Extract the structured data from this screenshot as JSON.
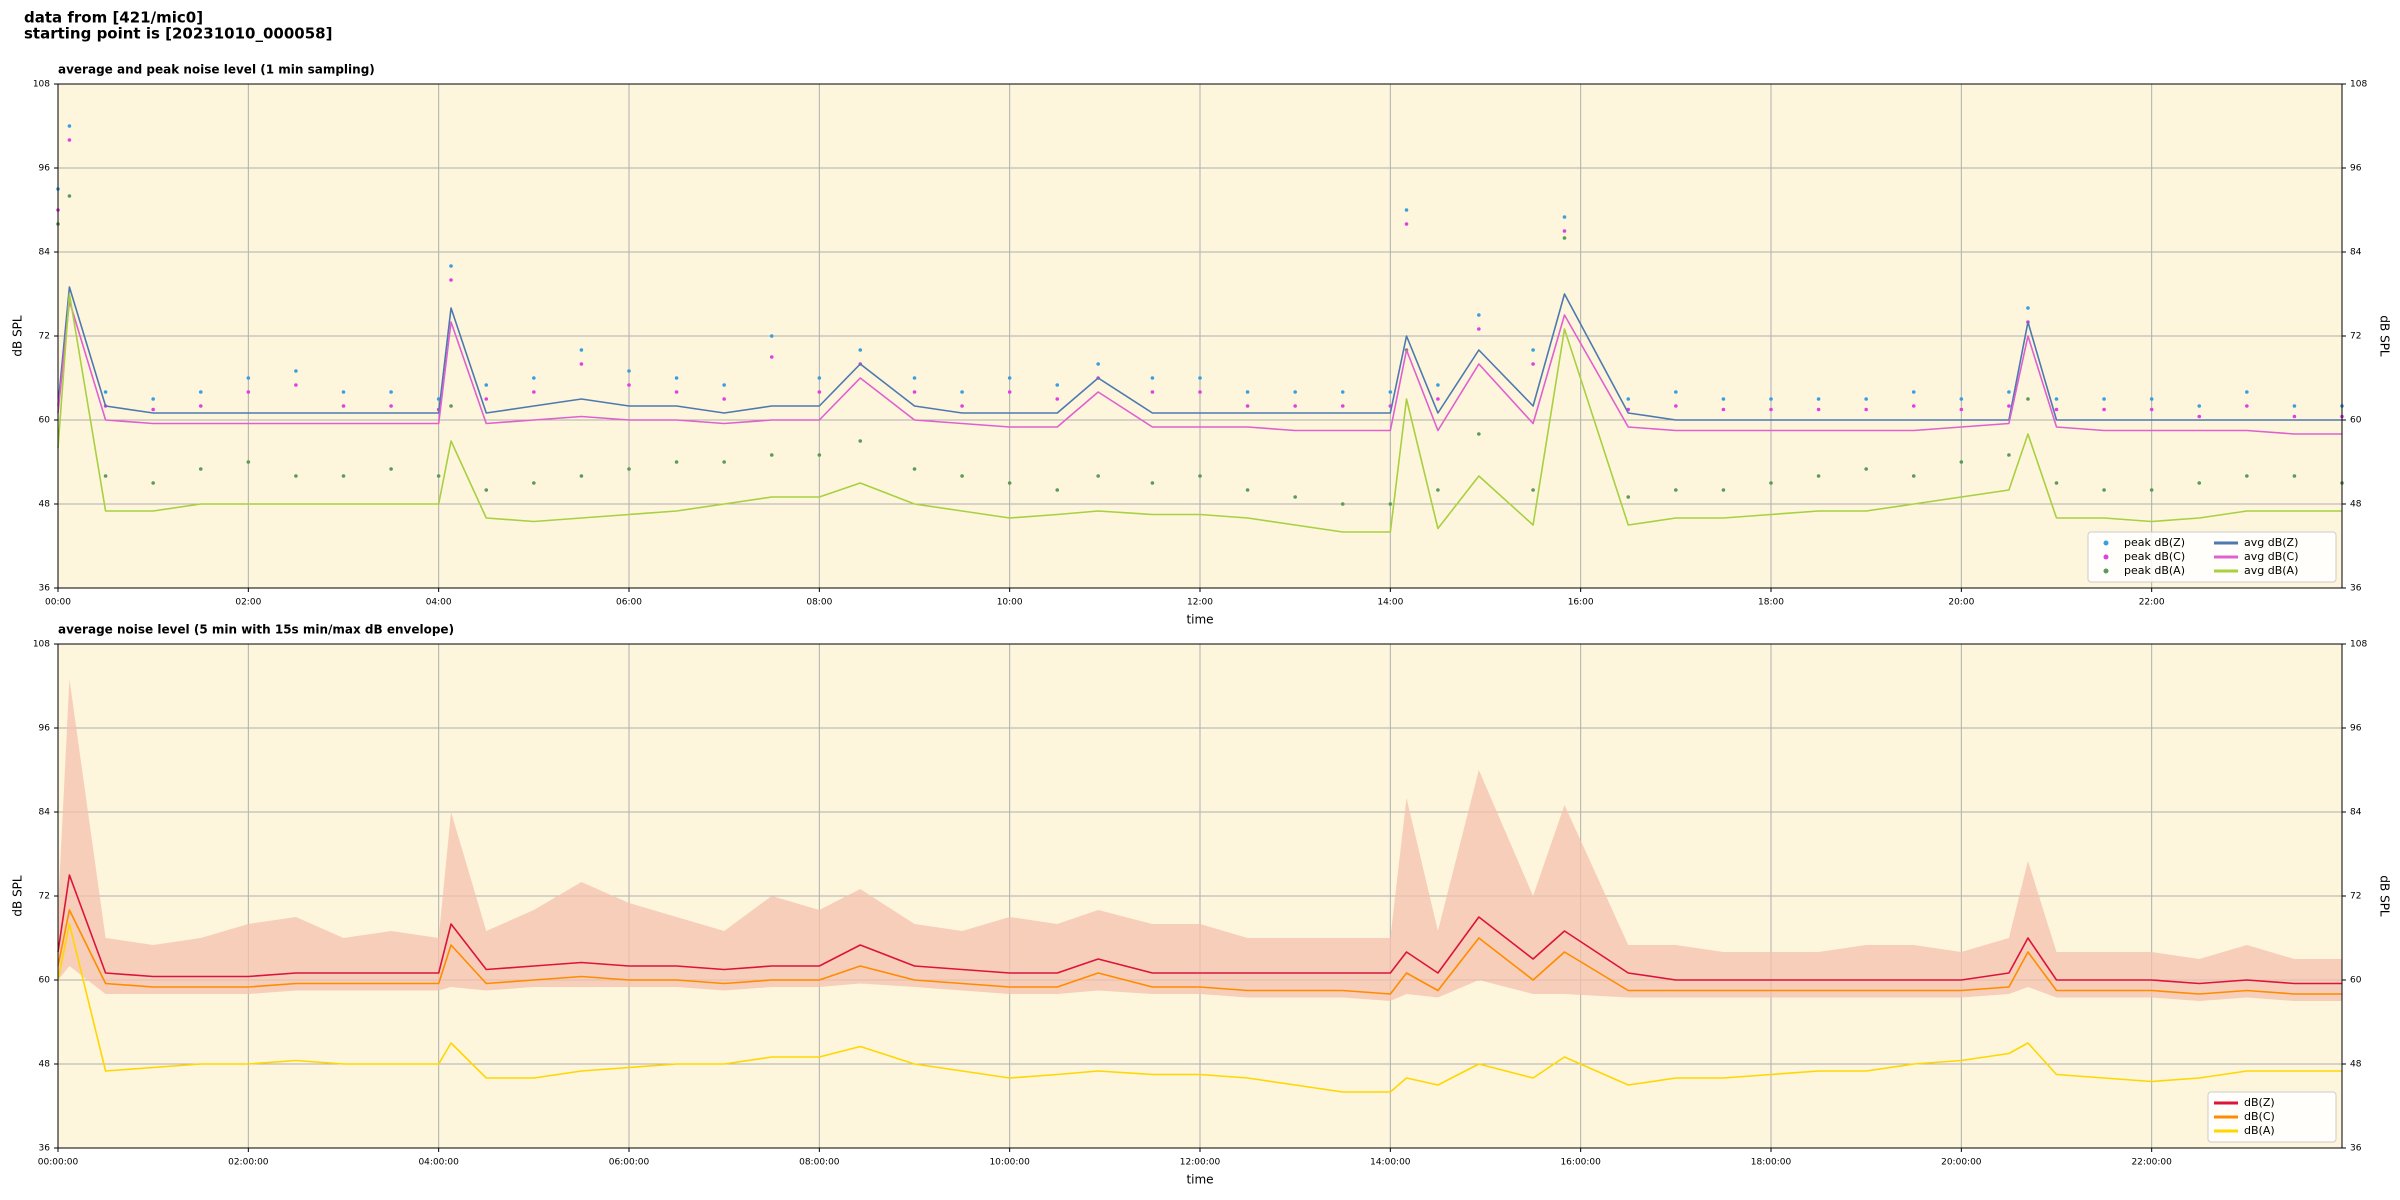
{
  "header": {
    "lines": [
      "data from [421/mic0]",
      "starting point is [20231010_000058]"
    ]
  },
  "chart_data": [
    {
      "type": "line",
      "title": "average and peak noise level (1 min sampling)",
      "x_label": "time",
      "y_label": "dB SPL",
      "x": [
        0,
        0.12,
        0.5,
        1,
        1.5,
        2,
        2.5,
        3,
        3.5,
        4,
        4.13,
        4.5,
        5,
        5.5,
        6,
        6.5,
        7,
        7.5,
        8,
        8.43,
        9,
        9.5,
        10,
        10.5,
        10.93,
        11.5,
        12,
        12.5,
        13,
        13.5,
        14,
        14.17,
        14.5,
        14.93,
        15.5,
        15.83,
        16.5,
        17,
        17.5,
        18,
        18.5,
        19,
        19.5,
        20,
        20.5,
        20.7,
        21,
        21.5,
        22,
        22.5,
        23,
        23.5,
        24
      ],
      "xlim": [
        0,
        24
      ],
      "xticks": [
        {
          "value": 0,
          "label": "00:00"
        },
        {
          "value": 2,
          "label": "02:00"
        },
        {
          "value": 4,
          "label": "04:00"
        },
        {
          "value": 6,
          "label": "06:00"
        },
        {
          "value": 8,
          "label": "08:00"
        },
        {
          "value": 10,
          "label": "10:00"
        },
        {
          "value": 12,
          "label": "12:00"
        },
        {
          "value": 14,
          "label": "14:00"
        },
        {
          "value": 16,
          "label": "16:00"
        },
        {
          "value": 18,
          "label": "18:00"
        },
        {
          "value": 20,
          "label": "20:00"
        },
        {
          "value": 22,
          "label": "22:00"
        }
      ],
      "ylim": [
        36,
        108
      ],
      "yticks": [
        36,
        48,
        60,
        72,
        84,
        96,
        108
      ],
      "grid": true,
      "background": "#fdf6dc",
      "legend": "lower right",
      "legend_columns": 2,
      "series": [
        {
          "name": "peak dB(Z)",
          "style": "dots",
          "color": "#3a9ee0",
          "values": [
            93,
            102,
            64,
            63,
            64,
            66,
            67,
            64,
            64,
            63,
            82,
            65,
            66,
            70,
            67,
            66,
            65,
            72,
            66,
            70,
            66,
            64,
            66,
            65,
            68,
            66,
            66,
            64,
            64,
            64,
            64,
            90,
            65,
            75,
            70,
            89,
            63,
            64,
            63,
            63,
            63,
            63,
            64,
            63,
            64,
            76,
            63,
            63,
            63,
            62,
            64,
            62,
            62
          ]
        },
        {
          "name": "peak dB(C)",
          "style": "dots",
          "color": "#e040e0",
          "values": [
            90,
            100,
            62,
            61.5,
            62,
            64,
            65,
            62,
            62,
            61.5,
            80,
            63,
            64,
            68,
            65,
            64,
            63,
            69,
            64,
            68,
            64,
            62,
            64,
            63,
            66,
            64,
            64,
            62,
            62,
            62,
            62,
            88,
            63,
            73,
            68,
            87,
            61.5,
            62,
            61.5,
            61.5,
            61.5,
            61.5,
            62,
            61.5,
            62,
            74,
            61.5,
            61.5,
            61.5,
            60.5,
            62,
            60.5,
            60.5
          ]
        },
        {
          "name": "peak dB(A)",
          "style": "dots",
          "color": "#5a9a5a",
          "values": [
            88,
            92,
            52,
            51,
            53,
            54,
            52,
            52,
            53,
            52,
            62,
            50,
            51,
            52,
            53,
            54,
            54,
            55,
            55,
            57,
            53,
            52,
            51,
            50,
            52,
            51,
            52,
            50,
            49,
            48,
            48,
            70,
            50,
            58,
            50,
            86,
            49,
            50,
            50,
            51,
            52,
            53,
            52,
            54,
            55,
            63,
            51,
            50,
            50,
            51,
            52,
            52,
            51
          ]
        },
        {
          "name": "avg dB(Z)",
          "style": "line",
          "color": "#4e79b0",
          "values": [
            62,
            79,
            62,
            61,
            61,
            61,
            61,
            61,
            61,
            61,
            76,
            61,
            62,
            63,
            62,
            62,
            61,
            62,
            62,
            68,
            62,
            61,
            61,
            61,
            66,
            61,
            61,
            61,
            61,
            61,
            61,
            72,
            61,
            70,
            62,
            78,
            61,
            60,
            60,
            60,
            60,
            60,
            60,
            60,
            60,
            74,
            60,
            60,
            60,
            60,
            60,
            60,
            60
          ]
        },
        {
          "name": "avg dB(C)",
          "style": "line",
          "color": "#e060d0",
          "values": [
            61,
            77,
            60,
            59.5,
            59.5,
            59.5,
            59.5,
            59.5,
            59.5,
            59.5,
            74,
            59.5,
            60,
            60.5,
            60,
            60,
            59.5,
            60,
            60,
            66,
            60,
            59.5,
            59,
            59,
            64,
            59,
            59,
            59,
            58.5,
            58.5,
            58.5,
            70,
            58.5,
            68,
            59.5,
            75,
            59,
            58.5,
            58.5,
            58.5,
            58.5,
            58.5,
            58.5,
            59,
            59.5,
            72,
            59,
            58.5,
            58.5,
            58.5,
            58.5,
            58,
            58
          ]
        },
        {
          "name": "avg dB(A)",
          "style": "line",
          "color": "#a8d040",
          "values": [
            56,
            78,
            47,
            47,
            48,
            48,
            48,
            48,
            48,
            48,
            57,
            46,
            45.5,
            46,
            46.5,
            47,
            48,
            49,
            49,
            51,
            48,
            47,
            46,
            46.5,
            47,
            46.5,
            46.5,
            46,
            45,
            44,
            44,
            63,
            44.5,
            52,
            45,
            73,
            45,
            46,
            46,
            46.5,
            47,
            47,
            48,
            49,
            50,
            58,
            46,
            46,
            45.5,
            46,
            47,
            47,
            47
          ]
        }
      ]
    },
    {
      "type": "line",
      "title": "average noise level (5 min with 15s min/max dB envelope)",
      "x_label": "time",
      "y_label": "dB SPL",
      "x": [
        0,
        0.12,
        0.5,
        1,
        1.5,
        2,
        2.5,
        3,
        3.5,
        4,
        4.13,
        4.5,
        5,
        5.5,
        6,
        6.5,
        7,
        7.5,
        8,
        8.43,
        9,
        9.5,
        10,
        10.5,
        10.93,
        11.5,
        12,
        12.5,
        13,
        13.5,
        14,
        14.17,
        14.5,
        14.93,
        15.5,
        15.83,
        16.5,
        17,
        17.5,
        18,
        18.5,
        19,
        19.5,
        20,
        20.5,
        20.7,
        21,
        21.5,
        22,
        22.5,
        23,
        23.5,
        24
      ],
      "xlim": [
        0,
        24
      ],
      "xticks": [
        {
          "value": 0,
          "label": "00:00:00"
        },
        {
          "value": 2,
          "label": "02:00:00"
        },
        {
          "value": 4,
          "label": "04:00:00"
        },
        {
          "value": 6,
          "label": "06:00:00"
        },
        {
          "value": 8,
          "label": "08:00:00"
        },
        {
          "value": 10,
          "label": "10:00:00"
        },
        {
          "value": 12,
          "label": "12:00:00"
        },
        {
          "value": 14,
          "label": "14:00:00"
        },
        {
          "value": 16,
          "label": "16:00:00"
        },
        {
          "value": 18,
          "label": "18:00:00"
        },
        {
          "value": 20,
          "label": "20:00:00"
        },
        {
          "value": 22,
          "label": "22:00:00"
        }
      ],
      "ylim": [
        36,
        108
      ],
      "yticks": [
        36,
        48,
        60,
        72,
        84,
        96,
        108
      ],
      "grid": true,
      "background": "#fdf6dc",
      "legend": "lower right",
      "legend_columns": 1,
      "envelope": {
        "color": "#f4c0ae",
        "high": [
          70,
          103,
          66,
          65,
          66,
          68,
          69,
          66,
          67,
          66,
          84,
          67,
          70,
          74,
          71,
          69,
          67,
          72,
          70,
          73,
          68,
          67,
          69,
          68,
          70,
          68,
          68,
          66,
          66,
          66,
          66,
          86,
          67,
          90,
          72,
          85,
          65,
          65,
          64,
          64,
          64,
          65,
          65,
          64,
          66,
          77,
          64,
          64,
          64,
          63,
          65,
          63,
          63
        ],
        "low": [
          60,
          62,
          58,
          58,
          58,
          58,
          58.5,
          58.5,
          58.5,
          58.5,
          59,
          58.5,
          59,
          59,
          59,
          59,
          58.5,
          59,
          59,
          59.5,
          59,
          58.5,
          58,
          58,
          58.5,
          58,
          58,
          57.5,
          57.5,
          57.5,
          57,
          58,
          57.5,
          60,
          58,
          58,
          57.5,
          57.5,
          57.5,
          57.5,
          57.5,
          57.5,
          57.5,
          57.5,
          58,
          59,
          57.5,
          57.5,
          57.5,
          57,
          57.5,
          57,
          57
        ]
      },
      "series": [
        {
          "name": "dB(Z)",
          "style": "line",
          "color": "#dc143c",
          "values": [
            64,
            75,
            61,
            60.5,
            60.5,
            60.5,
            61,
            61,
            61,
            61,
            68,
            61.5,
            62,
            62.5,
            62,
            62,
            61.5,
            62,
            62,
            65,
            62,
            61.5,
            61,
            61,
            63,
            61,
            61,
            61,
            61,
            61,
            61,
            64,
            61,
            69,
            63,
            67,
            61,
            60,
            60,
            60,
            60,
            60,
            60,
            60,
            61,
            66,
            60,
            60,
            60,
            59.5,
            60,
            59.5,
            59.5
          ]
        },
        {
          "name": "dB(C)",
          "style": "line",
          "color": "#ff8c00",
          "values": [
            62,
            70,
            59.5,
            59,
            59,
            59,
            59.5,
            59.5,
            59.5,
            59.5,
            65,
            59.5,
            60,
            60.5,
            60,
            60,
            59.5,
            60,
            60,
            62,
            60,
            59.5,
            59,
            59,
            61,
            59,
            59,
            58.5,
            58.5,
            58.5,
            58,
            61,
            58.5,
            66,
            60,
            64,
            58.5,
            58.5,
            58.5,
            58.5,
            58.5,
            58.5,
            58.5,
            58.5,
            59,
            64,
            58.5,
            58.5,
            58.5,
            58,
            58.5,
            58,
            58
          ]
        },
        {
          "name": "dB(A)",
          "style": "line",
          "color": "#ffd700",
          "values": [
            60,
            68,
            47,
            47.5,
            48,
            48,
            48.5,
            48,
            48,
            48,
            51,
            46,
            46,
            47,
            47.5,
            48,
            48,
            49,
            49,
            50.5,
            48,
            47,
            46,
            46.5,
            47,
            46.5,
            46.5,
            46,
            45,
            44,
            44,
            46,
            45,
            48,
            46,
            49,
            45,
            46,
            46,
            46.5,
            47,
            47,
            48,
            48.5,
            49.5,
            51,
            46.5,
            46,
            45.5,
            46,
            47,
            47,
            47
          ]
        }
      ]
    }
  ]
}
